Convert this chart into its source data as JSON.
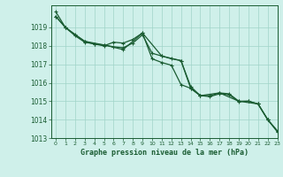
{
  "title": "Graphe pression niveau de la mer (hPa)",
  "background_color": "#cff0ea",
  "plot_background": "#cff0ea",
  "grid_color": "#a0d4c8",
  "line_color": "#1a5c32",
  "marker_color": "#1a5c32",
  "xlim": [
    -0.5,
    23
  ],
  "ylim": [
    1013,
    1020.2
  ],
  "xticks": [
    0,
    1,
    2,
    3,
    4,
    5,
    6,
    7,
    8,
    9,
    10,
    11,
    12,
    13,
    14,
    15,
    16,
    17,
    18,
    19,
    20,
    21,
    22,
    23
  ],
  "yticks": [
    1013,
    1014,
    1015,
    1016,
    1017,
    1018,
    1019
  ],
  "series": [
    {
      "x": [
        0,
        1,
        2,
        3,
        4,
        5,
        6,
        7,
        8,
        9,
        10,
        11,
        12,
        13,
        14,
        15,
        16,
        17,
        18,
        19,
        20,
        21,
        22,
        23
      ],
      "y": [
        1019.6,
        1019.0,
        1018.6,
        1018.25,
        1018.1,
        1018.05,
        1017.95,
        1017.9,
        1018.15,
        1018.6,
        1017.6,
        1017.45,
        1017.3,
        1017.2,
        1015.7,
        1015.3,
        1015.3,
        1015.45,
        1015.4,
        1015.0,
        1015.0,
        1014.85,
        1014.0,
        1013.35
      ]
    },
    {
      "x": [
        0,
        1,
        2,
        3,
        4,
        5,
        6,
        7,
        8,
        9,
        10,
        11,
        12,
        13,
        14,
        15,
        16,
        17,
        18,
        19,
        20,
        21,
        22,
        23
      ],
      "y": [
        1019.6,
        1019.0,
        1018.55,
        1018.2,
        1018.1,
        1018.0,
        1018.2,
        1018.15,
        1018.35,
        1018.7,
        1017.3,
        1017.1,
        1016.95,
        1015.9,
        1015.7,
        1015.3,
        1015.25,
        1015.4,
        1015.35,
        1014.98,
        1015.0,
        1014.85,
        1014.0,
        1013.4
      ]
    },
    {
      "x": [
        0,
        1,
        3,
        5,
        7,
        9,
        11,
        13,
        14,
        15,
        17,
        19,
        21,
        22,
        23
      ],
      "y": [
        1019.85,
        1019.0,
        1018.25,
        1018.05,
        1017.8,
        1018.7,
        1017.45,
        1017.2,
        1015.8,
        1015.3,
        1015.45,
        1015.0,
        1014.85,
        1014.0,
        1013.35
      ]
    }
  ]
}
